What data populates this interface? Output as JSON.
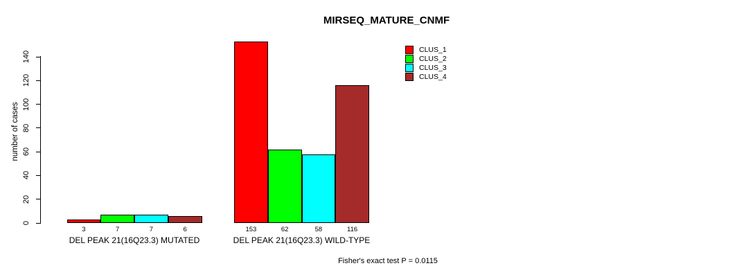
{
  "title": "MIRSEQ_MATURE_CNMF",
  "footer": "Fisher's exact test P = 0.0115",
  "chart_data": {
    "type": "bar",
    "title": "MIRSEQ_MATURE_CNMF",
    "xlabel": "",
    "ylabel": "number of cases",
    "groups": [
      "DEL PEAK 21(16Q23.3) MUTATED",
      "DEL PEAK 21(16Q23.3) WILD-TYPE"
    ],
    "series": [
      {
        "name": "CLUS_1",
        "color": "#ff0000",
        "values": [
          3,
          153
        ]
      },
      {
        "name": "CLUS_2",
        "color": "#00ff00",
        "values": [
          7,
          62
        ]
      },
      {
        "name": "CLUS_3",
        "color": "#00ffff",
        "values": [
          7,
          58
        ]
      },
      {
        "name": "CLUS_4",
        "color": "#a52a2a",
        "values": [
          6,
          116
        ]
      }
    ],
    "bar_value_labels": [
      [
        3,
        7,
        7,
        6
      ],
      [
        153,
        62,
        58,
        116
      ]
    ],
    "yticks": [
      0,
      20,
      40,
      60,
      80,
      100,
      120,
      140
    ],
    "ylim": [
      0,
      155
    ],
    "grid": false,
    "legend_position": "top-right",
    "annotation": "Fisher's exact test P = 0.0115"
  }
}
